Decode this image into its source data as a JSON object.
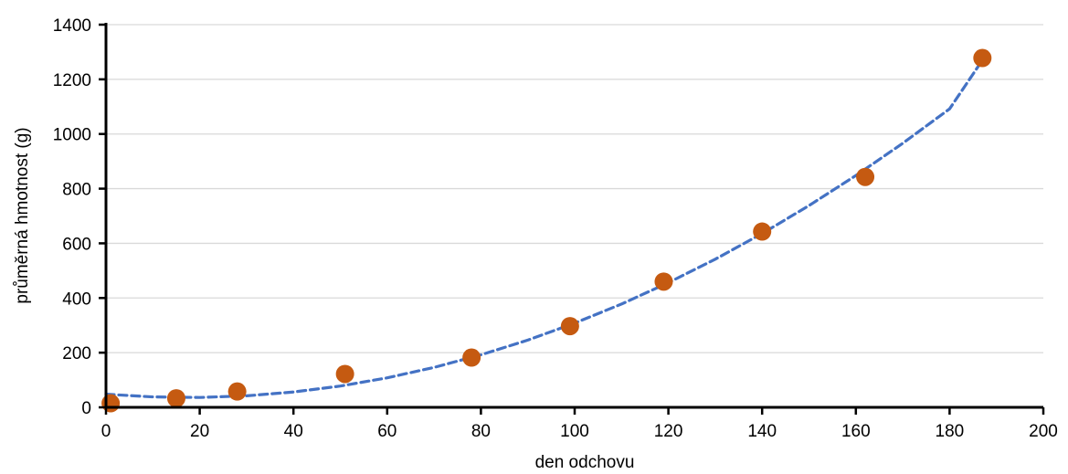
{
  "chart_data": {
    "type": "scatter",
    "title": "",
    "xlabel": "den odchovu",
    "ylabel": "průměrná hmotnost (g)",
    "xlim": [
      0,
      200
    ],
    "ylim": [
      0,
      1400
    ],
    "x_ticks": [
      0,
      20,
      40,
      60,
      80,
      100,
      120,
      140,
      160,
      180,
      200
    ],
    "y_ticks": [
      0,
      200,
      400,
      600,
      800,
      1000,
      1200,
      1400
    ],
    "grid": "horizontal",
    "legend": "none",
    "series": [
      {
        "type": "scatter",
        "x": [
          1,
          15,
          28,
          51,
          78,
          99,
          119,
          140,
          162,
          187
        ],
        "y": [
          15,
          33,
          58,
          122,
          182,
          297,
          460,
          643,
          843,
          1278
        ],
        "color": "#C55A11"
      },
      {
        "type": "trendline",
        "style": "dashed",
        "color": "#4472C4",
        "x": [
          0,
          10,
          20,
          30,
          40,
          50,
          60,
          70,
          80,
          90,
          100,
          110,
          120,
          130,
          140,
          150,
          160,
          170,
          180,
          187
        ],
        "y": [
          48,
          38,
          36,
          42,
          56,
          78,
          108,
          146,
          192,
          246,
          308,
          378,
          456,
          542,
          636,
          738,
          848,
          966,
          1092,
          1270
        ]
      }
    ]
  }
}
